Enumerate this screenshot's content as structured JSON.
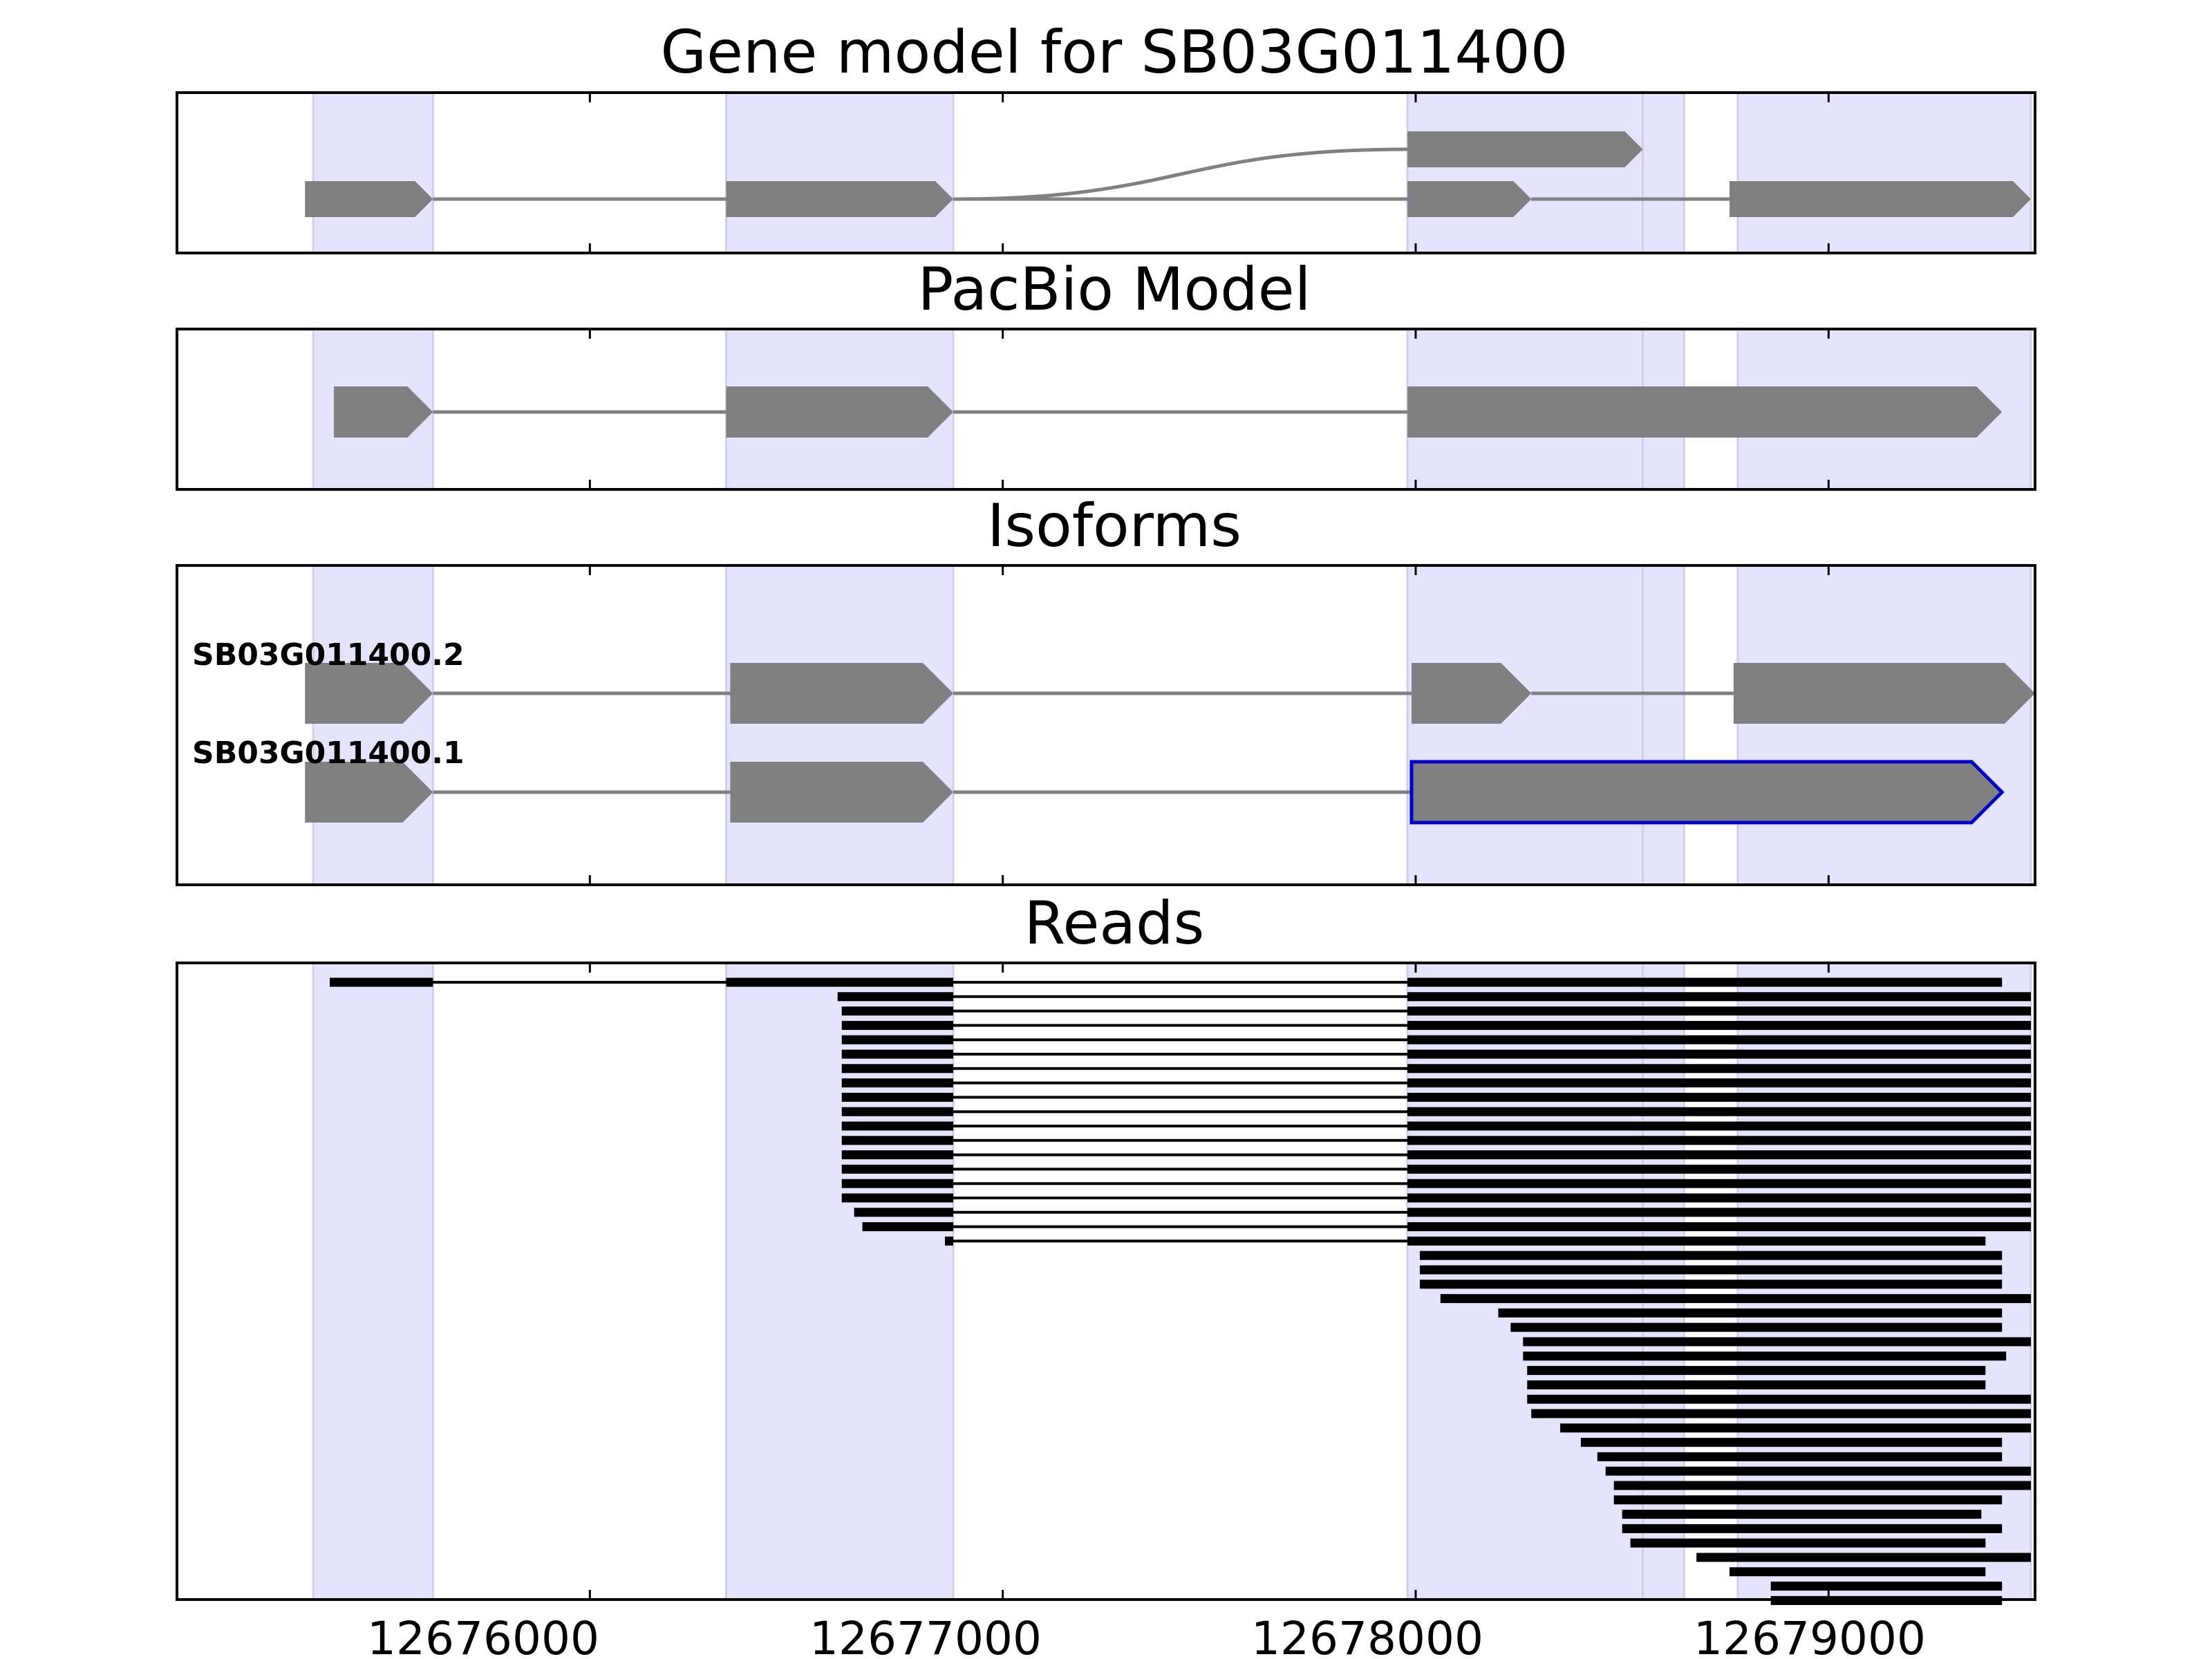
{
  "chart_data": [
    {
      "type": "gene-model-track",
      "title": "Gene model for SB03G011400",
      "transcripts": [
        {
          "exons": [
            [
              12675310,
              12675620
            ],
            [
              12676330,
              12676880
            ],
            [
              12677980,
              12678550
            ]
          ],
          "junction_style": "curve",
          "last_exon_level": "upper"
        },
        {
          "exons": [
            [
              12675310,
              12675620
            ],
            [
              12676330,
              12676880
            ],
            [
              12677980,
              12678280
            ],
            [
              12678760,
              12679490
            ]
          ],
          "junction_style": "straight",
          "level": "lower"
        }
      ]
    },
    {
      "type": "gene-model-track",
      "title": "PacBio Model",
      "transcripts": [
        {
          "exons": [
            [
              12675380,
              12675620
            ],
            [
              12676330,
              12676880
            ],
            [
              12677980,
              12679420
            ]
          ]
        }
      ]
    },
    {
      "type": "isoform-track",
      "title": "Isoforms",
      "isoforms": [
        {
          "name": "SB03G011400.2",
          "exons": [
            [
              12675310,
              12675620
            ],
            [
              12676340,
              12676880
            ],
            [
              12677990,
              12678280
            ],
            [
              12678770,
              12679500
            ]
          ]
        },
        {
          "name": "SB03G011400.1",
          "exons": [
            [
              12675310,
              12675620
            ],
            [
              12676340,
              12676880
            ],
            [
              12677990,
              12679420
            ]
          ],
          "highlight_last_exon": true
        }
      ]
    },
    {
      "type": "read-track",
      "title": "Reads",
      "spliced_reads": [
        {
          "blocks": [
            [
              12675370,
              12675620
            ],
            [
              12676330,
              12676880
            ],
            [
              12677980,
              12679420
            ]
          ]
        },
        {
          "blocks": [
            [
              12676600,
              12676880
            ],
            [
              12677980,
              12679490
            ]
          ]
        },
        {
          "blocks": [
            [
              12676610,
              12676880
            ],
            [
              12677980,
              12679490
            ]
          ]
        },
        {
          "blocks": [
            [
              12676610,
              12676880
            ],
            [
              12677980,
              12679490
            ]
          ]
        },
        {
          "blocks": [
            [
              12676610,
              12676880
            ],
            [
              12677980,
              12679490
            ]
          ]
        },
        {
          "blocks": [
            [
              12676610,
              12676880
            ],
            [
              12677980,
              12679490
            ]
          ]
        },
        {
          "blocks": [
            [
              12676610,
              12676880
            ],
            [
              12677980,
              12679490
            ]
          ]
        },
        {
          "blocks": [
            [
              12676610,
              12676880
            ],
            [
              12677980,
              12679490
            ]
          ]
        },
        {
          "blocks": [
            [
              12676610,
              12676880
            ],
            [
              12677980,
              12679490
            ]
          ]
        },
        {
          "blocks": [
            [
              12676610,
              12676880
            ],
            [
              12677980,
              12679490
            ]
          ]
        },
        {
          "blocks": [
            [
              12676610,
              12676880
            ],
            [
              12677980,
              12679490
            ]
          ]
        },
        {
          "blocks": [
            [
              12676610,
              12676880
            ],
            [
              12677980,
              12679490
            ]
          ]
        },
        {
          "blocks": [
            [
              12676610,
              12676880
            ],
            [
              12677980,
              12679490
            ]
          ]
        },
        {
          "blocks": [
            [
              12676610,
              12676880
            ],
            [
              12677980,
              12679490
            ]
          ]
        },
        {
          "blocks": [
            [
              12676610,
              12676880
            ],
            [
              12677980,
              12679490
            ]
          ]
        },
        {
          "blocks": [
            [
              12676610,
              12676880
            ],
            [
              12677980,
              12679490
            ]
          ]
        },
        {
          "blocks": [
            [
              12676640,
              12676880
            ],
            [
              12677980,
              12679490
            ]
          ]
        },
        {
          "blocks": [
            [
              12676660,
              12676880
            ],
            [
              12677980,
              12679490
            ]
          ]
        },
        {
          "blocks": [
            [
              12676860,
              12676880
            ],
            [
              12677980,
              12679380
            ]
          ]
        }
      ],
      "unspliced_reads": [
        [
          12678010,
          12679420
        ],
        [
          12678010,
          12679420
        ],
        [
          12678010,
          12679420
        ],
        [
          12678060,
          12679490
        ],
        [
          12678200,
          12679420
        ],
        [
          12678230,
          12679420
        ],
        [
          12678260,
          12679490
        ],
        [
          12678260,
          12679430
        ],
        [
          12678270,
          12679380
        ],
        [
          12678270,
          12679380
        ],
        [
          12678270,
          12679490
        ],
        [
          12678280,
          12679490
        ],
        [
          12678350,
          12679490
        ],
        [
          12678400,
          12679420
        ],
        [
          12678440,
          12679420
        ],
        [
          12678460,
          12679490
        ],
        [
          12678480,
          12679490
        ],
        [
          12678480,
          12679420
        ],
        [
          12678500,
          12679370
        ],
        [
          12678500,
          12679420
        ],
        [
          12678520,
          12679380
        ],
        [
          12678680,
          12679490
        ],
        [
          12678760,
          12679380
        ],
        [
          12678860,
          12679420
        ],
        [
          12678860,
          12679420
        ]
      ]
    }
  ],
  "shared_x_axis": {
    "range": [
      12675000,
      12679500
    ],
    "ticks": [
      12676000,
      12677000,
      12678000,
      12679000
    ],
    "tick_labels": [
      "12676000",
      "12677000",
      "12678000",
      "12679000"
    ]
  },
  "exon_bands": [
    [
      12675330,
      12675620
    ],
    [
      12676330,
      12676880
    ],
    [
      12677980,
      12678550
    ],
    [
      12678550,
      12678650
    ],
    [
      12678780,
      12679490
    ]
  ],
  "colors": {
    "band_fill": "#e4e4fc",
    "band_edge": "#cfd0ea",
    "exon_fill": "#808080",
    "intron_line": "#808080",
    "read": "#000000",
    "highlight_outline": "#0000cc",
    "frame": "#000000"
  }
}
